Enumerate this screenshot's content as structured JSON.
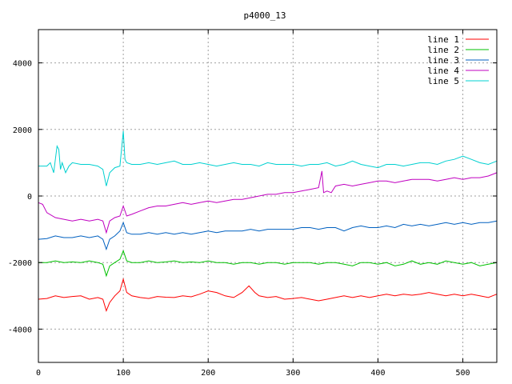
{
  "chart_data": {
    "type": "line",
    "title": "p4000_13",
    "xlabel": "",
    "ylabel": "",
    "xlim": [
      0,
      540
    ],
    "ylim": [
      -5000,
      5000
    ],
    "xticks": [
      0,
      100,
      200,
      300,
      400,
      500
    ],
    "yticks": [
      -4000,
      -2000,
      0,
      2000,
      4000
    ],
    "grid": true,
    "legend_position": "top-right",
    "series": [
      {
        "name": "line 1",
        "color": "#ff0000",
        "x": [
          0,
          10,
          20,
          30,
          40,
          50,
          60,
          70,
          76,
          80,
          84,
          90,
          96,
          100,
          104,
          110,
          120,
          130,
          140,
          150,
          160,
          170,
          180,
          190,
          200,
          210,
          220,
          230,
          240,
          248,
          255,
          260,
          270,
          280,
          290,
          300,
          310,
          320,
          330,
          340,
          350,
          360,
          370,
          380,
          390,
          400,
          410,
          420,
          430,
          440,
          450,
          460,
          470,
          480,
          490,
          500,
          510,
          520,
          530,
          540
        ],
        "values": [
          -3100,
          -3080,
          -3000,
          -3050,
          -3020,
          -3000,
          -3100,
          -3050,
          -3100,
          -3450,
          -3200,
          -3000,
          -2850,
          -2500,
          -2900,
          -3000,
          -3050,
          -3080,
          -3020,
          -3040,
          -3050,
          -3000,
          -3030,
          -2950,
          -2850,
          -2900,
          -3000,
          -3050,
          -2900,
          -2700,
          -2900,
          -3000,
          -3050,
          -3020,
          -3100,
          -3080,
          -3050,
          -3100,
          -3150,
          -3100,
          -3050,
          -3000,
          -3050,
          -3000,
          -3050,
          -3000,
          -2950,
          -3000,
          -2950,
          -2980,
          -2950,
          -2900,
          -2950,
          -3000,
          -2950,
          -3000,
          -2950,
          -3000,
          -3050,
          -2950
        ]
      },
      {
        "name": "line 2",
        "color": "#00c000",
        "x": [
          0,
          10,
          20,
          30,
          40,
          50,
          60,
          70,
          76,
          80,
          84,
          90,
          96,
          100,
          104,
          110,
          120,
          130,
          140,
          150,
          160,
          170,
          180,
          190,
          200,
          210,
          220,
          230,
          240,
          250,
          260,
          270,
          280,
          290,
          300,
          310,
          320,
          330,
          340,
          350,
          360,
          370,
          380,
          390,
          400,
          410,
          420,
          430,
          440,
          450,
          460,
          470,
          480,
          490,
          500,
          510,
          520,
          530,
          540
        ],
        "values": [
          -2000,
          -2000,
          -1950,
          -2000,
          -1980,
          -2000,
          -1950,
          -2000,
          -2050,
          -2400,
          -2100,
          -2000,
          -1900,
          -1650,
          -1950,
          -2000,
          -2000,
          -1950,
          -2000,
          -1980,
          -1950,
          -2000,
          -1980,
          -2000,
          -1950,
          -2000,
          -2000,
          -2050,
          -2000,
          -2000,
          -2050,
          -2000,
          -2000,
          -2050,
          -2000,
          -2000,
          -2000,
          -2050,
          -2000,
          -2000,
          -2050,
          -2100,
          -2000,
          -2000,
          -2050,
          -2000,
          -2100,
          -2050,
          -1950,
          -2050,
          -2000,
          -2050,
          -1950,
          -2000,
          -2050,
          -2000,
          -2100,
          -2050,
          -2000
        ]
      },
      {
        "name": "line 3",
        "color": "#0060c0",
        "x": [
          0,
          10,
          20,
          30,
          40,
          50,
          60,
          70,
          76,
          80,
          84,
          90,
          96,
          100,
          104,
          110,
          120,
          130,
          140,
          150,
          160,
          170,
          180,
          190,
          200,
          210,
          220,
          230,
          240,
          250,
          260,
          270,
          280,
          290,
          300,
          310,
          320,
          330,
          340,
          350,
          360,
          370,
          380,
          390,
          400,
          410,
          420,
          430,
          440,
          450,
          460,
          470,
          480,
          490,
          500,
          510,
          520,
          530,
          540
        ],
        "values": [
          -1300,
          -1280,
          -1200,
          -1250,
          -1250,
          -1200,
          -1250,
          -1200,
          -1300,
          -1600,
          -1300,
          -1200,
          -1050,
          -800,
          -1100,
          -1150,
          -1150,
          -1100,
          -1150,
          -1100,
          -1150,
          -1100,
          -1150,
          -1100,
          -1050,
          -1100,
          -1050,
          -1050,
          -1050,
          -1000,
          -1050,
          -1000,
          -1000,
          -1000,
          -1000,
          -950,
          -950,
          -1000,
          -950,
          -950,
          -1050,
          -950,
          -900,
          -950,
          -950,
          -900,
          -950,
          -850,
          -900,
          -850,
          -900,
          -850,
          -800,
          -850,
          -800,
          -850,
          -800,
          -800,
          -750
        ]
      },
      {
        "name": "line 4",
        "color": "#c000c0",
        "x": [
          0,
          5,
          10,
          20,
          30,
          40,
          50,
          60,
          70,
          76,
          80,
          84,
          90,
          96,
          100,
          104,
          110,
          120,
          130,
          140,
          150,
          160,
          170,
          180,
          190,
          200,
          210,
          220,
          230,
          240,
          250,
          260,
          270,
          280,
          290,
          300,
          310,
          320,
          330,
          334,
          336,
          340,
          345,
          350,
          360,
          370,
          380,
          390,
          400,
          410,
          420,
          430,
          440,
          450,
          460,
          470,
          480,
          490,
          500,
          510,
          520,
          530,
          540
        ],
        "values": [
          -200,
          -250,
          -500,
          -650,
          -700,
          -750,
          -700,
          -750,
          -700,
          -750,
          -1100,
          -750,
          -650,
          -600,
          -300,
          -600,
          -550,
          -450,
          -350,
          -300,
          -300,
          -250,
          -200,
          -250,
          -200,
          -150,
          -200,
          -150,
          -100,
          -100,
          -50,
          0,
          50,
          50,
          100,
          100,
          150,
          200,
          250,
          750,
          100,
          150,
          100,
          300,
          350,
          300,
          350,
          400,
          450,
          450,
          400,
          450,
          500,
          500,
          500,
          450,
          500,
          550,
          500,
          550,
          550,
          600,
          700
        ]
      },
      {
        "name": "line 5",
        "color": "#00d0d0",
        "x": [
          0,
          10,
          14,
          18,
          22,
          24,
          26,
          28,
          32,
          36,
          40,
          50,
          60,
          70,
          76,
          80,
          84,
          90,
          96,
          100,
          102,
          104,
          110,
          120,
          130,
          140,
          150,
          160,
          170,
          180,
          190,
          200,
          210,
          220,
          230,
          240,
          250,
          260,
          270,
          280,
          290,
          300,
          310,
          320,
          330,
          340,
          350,
          360,
          370,
          380,
          390,
          400,
          410,
          420,
          430,
          440,
          450,
          460,
          470,
          480,
          490,
          500,
          510,
          520,
          530,
          540
        ],
        "values": [
          900,
          900,
          1000,
          700,
          1500,
          1400,
          800,
          1000,
          700,
          900,
          1000,
          950,
          950,
          900,
          800,
          300,
          700,
          850,
          900,
          1950,
          1100,
          1000,
          950,
          950,
          1000,
          950,
          1000,
          1050,
          950,
          950,
          1000,
          950,
          900,
          950,
          1000,
          950,
          950,
          900,
          1000,
          950,
          950,
          950,
          900,
          950,
          950,
          1000,
          900,
          950,
          1050,
          950,
          900,
          850,
          950,
          950,
          900,
          950,
          1000,
          1000,
          950,
          1050,
          1100,
          1200,
          1100,
          1000,
          950,
          1050
        ]
      }
    ]
  }
}
